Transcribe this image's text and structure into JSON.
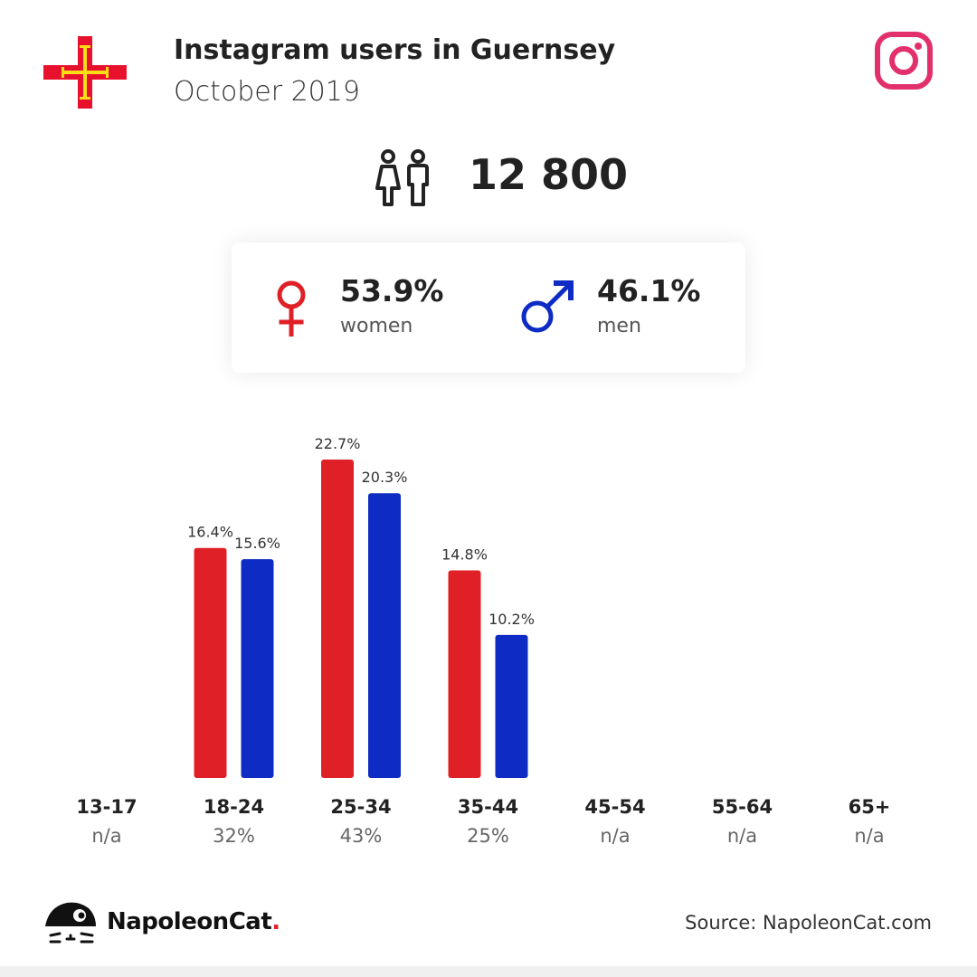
{
  "header": {
    "title": "Instagram users in Guernsey",
    "subtitle": "October 2019"
  },
  "total": {
    "value": "12 800"
  },
  "gender": {
    "female_pct": "53.9%",
    "female_label": "women",
    "male_pct": "46.1%",
    "male_label": "men"
  },
  "colors": {
    "female": "#e02027",
    "male": "#0e2bc4",
    "instagram": "#e1306c",
    "flag_red": "#e8112d",
    "flag_gold": "#f9dd16"
  },
  "chart_data": {
    "type": "bar",
    "categories": [
      "13-17",
      "18-24",
      "25-34",
      "35-44",
      "45-54",
      "55-64",
      "65+"
    ],
    "category_totals": [
      "n/a",
      "32%",
      "43%",
      "25%",
      "n/a",
      "n/a",
      "n/a"
    ],
    "series": [
      {
        "values": [
          null,
          16.4,
          22.7,
          14.8,
          null,
          null,
          null
        ],
        "labels": [
          "",
          "16.4%",
          "22.7%",
          "14.8%",
          "",
          "",
          ""
        ]
      },
      {
        "values": [
          null,
          15.6,
          20.3,
          10.2,
          null,
          null,
          null
        ],
        "labels": [
          "",
          "15.6%",
          "20.3%",
          "10.2%",
          "",
          "",
          ""
        ]
      }
    ],
    "ylim": [
      0,
      22.7
    ],
    "grid": false
  },
  "footer": {
    "brand": "NapoleonCat",
    "brand_dot": ".",
    "source": "Source: NapoleonCat.com"
  }
}
